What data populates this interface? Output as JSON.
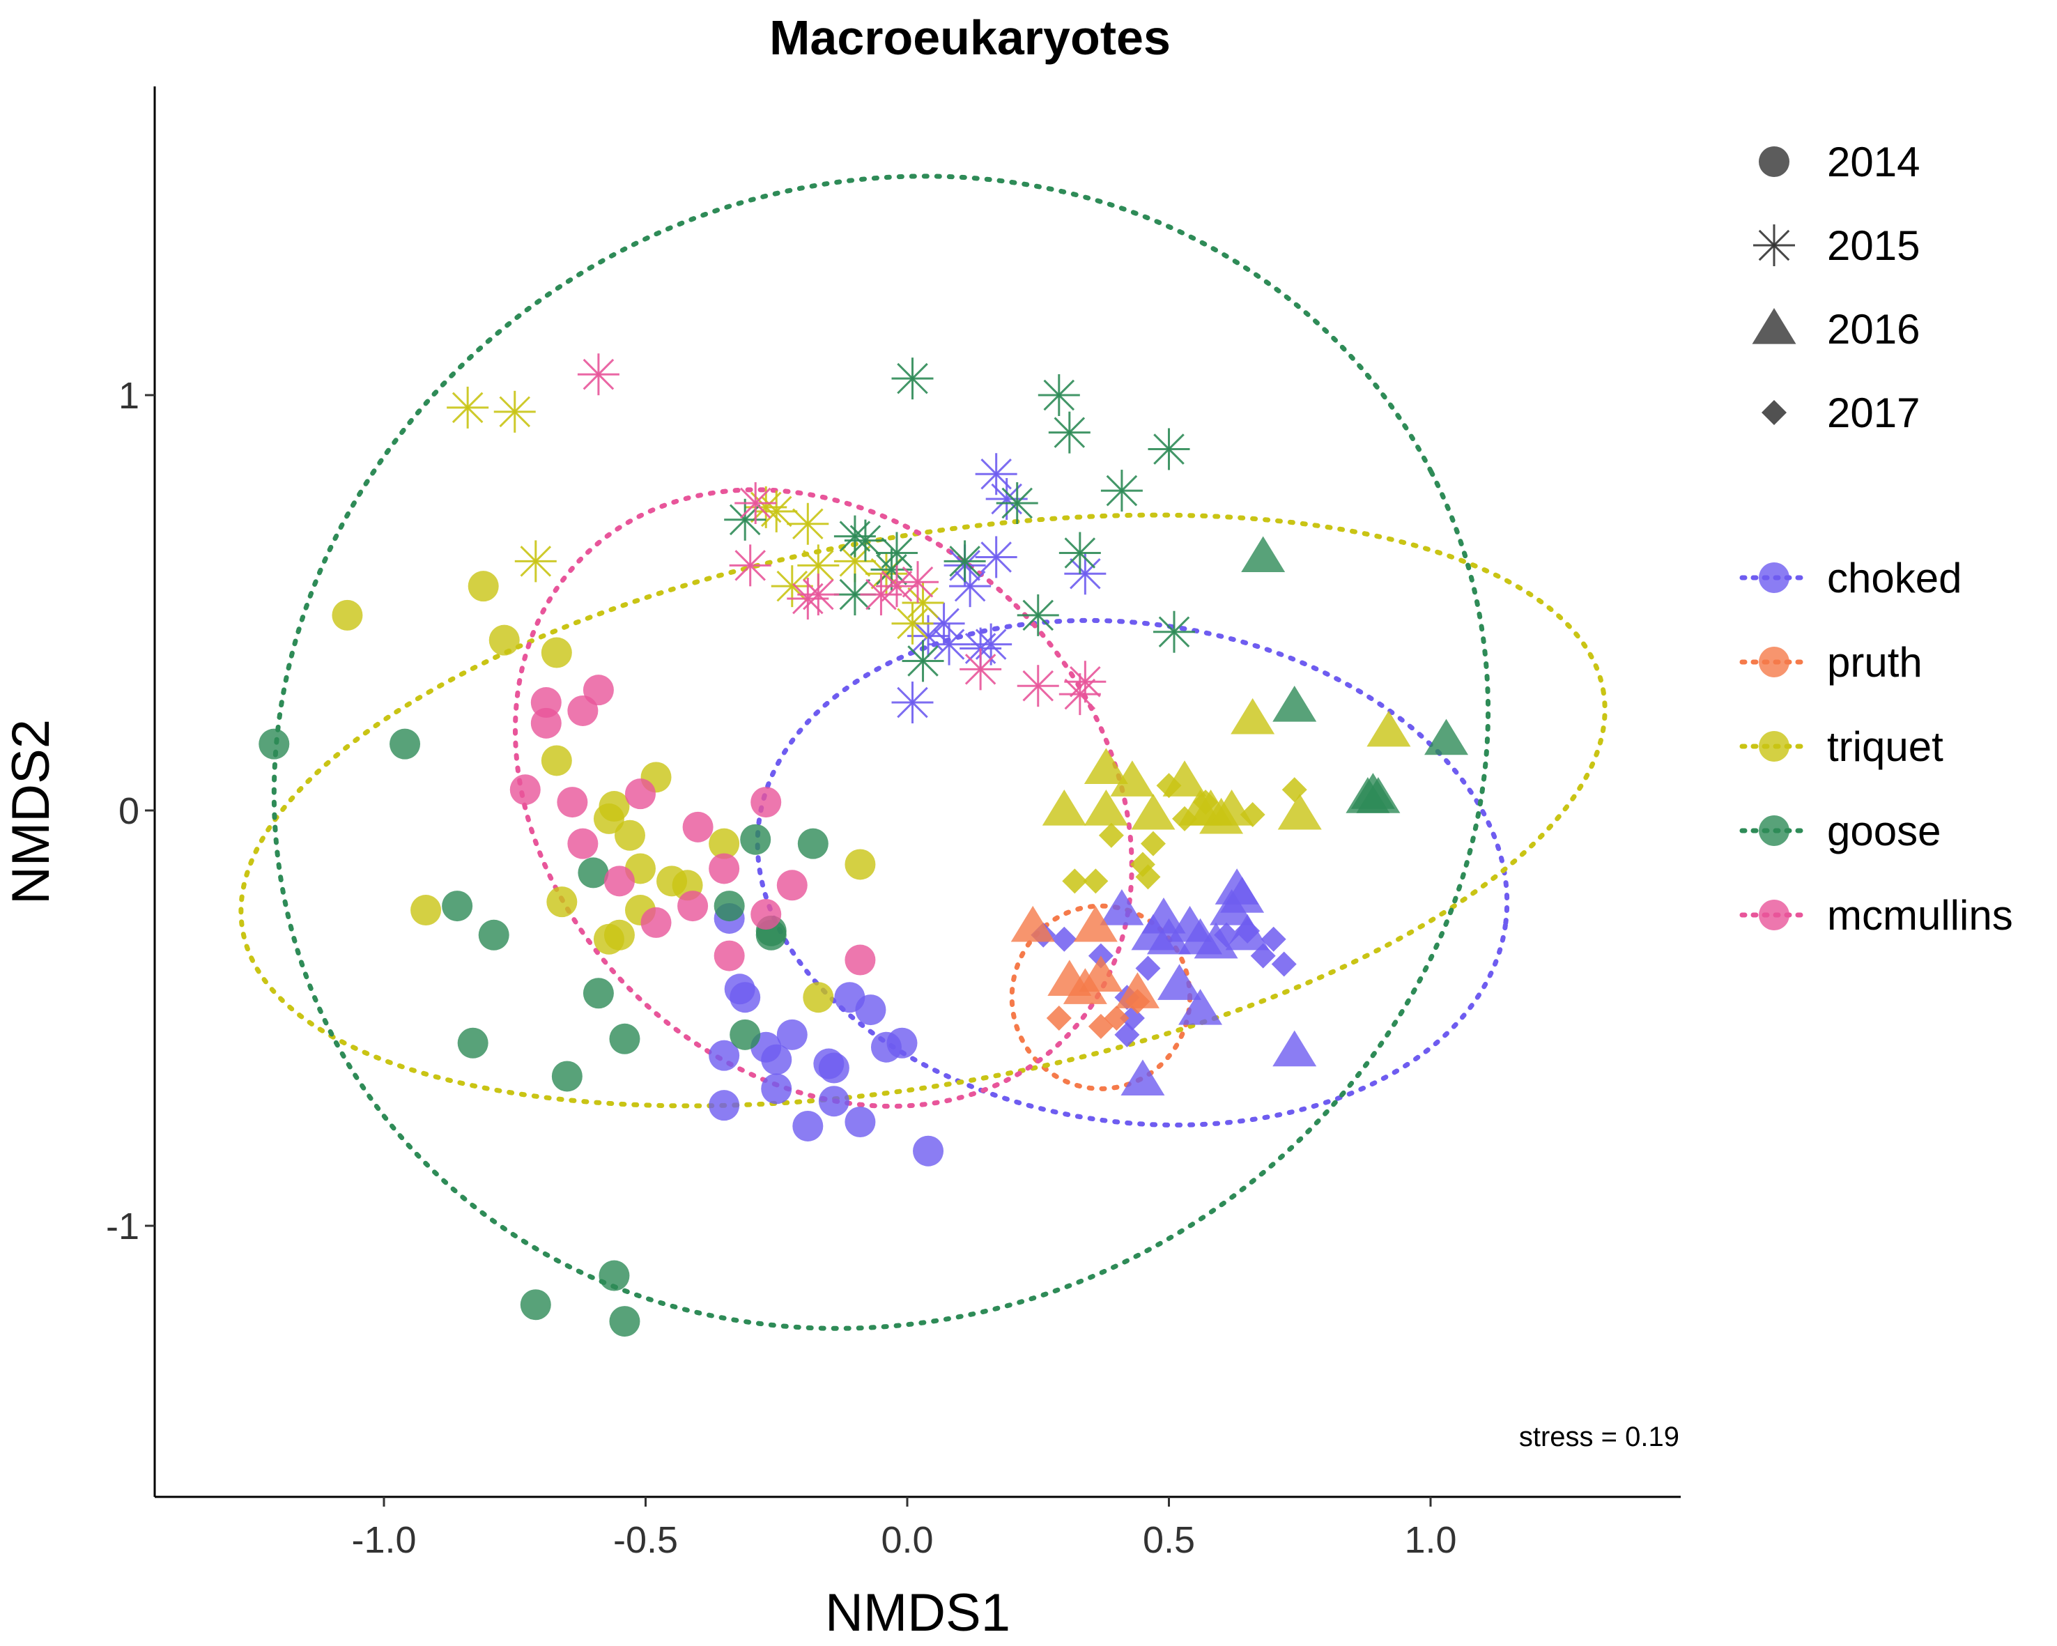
{
  "chart_data": {
    "type": "scatter",
    "title": "Macroeukaryotes",
    "xlabel": "NMDS1",
    "ylabel": "NMDS2",
    "xlim": [
      -1.46,
      1.46
    ],
    "ylim": [
      -1.65,
      1.74
    ],
    "xticks": [
      -1.0,
      -0.5,
      0.0,
      0.5,
      1.0
    ],
    "xtick_labels": [
      "-1.0",
      "-0.5",
      "0.0",
      "0.5",
      "1.0"
    ],
    "yticks": [
      -1,
      0,
      1
    ],
    "ytick_labels": [
      "-1",
      "0",
      "1"
    ],
    "grid": false,
    "annotation": "stress = 0.19",
    "legend_year": {
      "entries": [
        {
          "label": "2014",
          "shape": "circle"
        },
        {
          "label": "2015",
          "shape": "asterisk"
        },
        {
          "label": "2016",
          "shape": "triangle"
        },
        {
          "label": "2017",
          "shape": "diamond"
        }
      ]
    },
    "legend_site": {
      "entries": [
        {
          "label": "choked",
          "color": "#6e5cf0"
        },
        {
          "label": "pruth",
          "color": "#f57a4a"
        },
        {
          "label": "triquet",
          "color": "#c9c414"
        },
        {
          "label": "goose",
          "color": "#2e8b57"
        },
        {
          "label": "mcmullins",
          "color": "#e8559a"
        }
      ]
    },
    "ellipses": [
      {
        "site": "choked",
        "cx": 0.43,
        "cy": -0.15,
        "rx": 0.72,
        "ry": 0.6,
        "rot": 8
      },
      {
        "site": "pruth",
        "cx": 0.37,
        "cy": -0.45,
        "rx": 0.17,
        "ry": 0.22,
        "rot": 0
      },
      {
        "site": "triquet",
        "cx": 0.03,
        "cy": 0.0,
        "rx": 1.32,
        "ry": 0.66,
        "rot": -10
      },
      {
        "site": "goose",
        "cx": -0.05,
        "cy": 0.14,
        "rx": 1.18,
        "ry": 1.36,
        "rot": -27
      },
      {
        "site": "mcmullins",
        "cx": -0.16,
        "cy": 0.03,
        "rx": 0.52,
        "ry": 0.82,
        "rot": -45
      }
    ],
    "series": [
      {
        "name": "choked",
        "year": "2014",
        "points": [
          [
            -0.34,
            -0.26
          ],
          [
            -0.32,
            -0.43
          ],
          [
            -0.31,
            -0.45
          ],
          [
            -0.27,
            -0.57
          ],
          [
            -0.25,
            -0.6
          ],
          [
            -0.25,
            -0.67
          ],
          [
            -0.22,
            -0.54
          ],
          [
            -0.19,
            -0.76
          ],
          [
            -0.15,
            -0.61
          ],
          [
            -0.14,
            -0.7
          ],
          [
            -0.11,
            -0.45
          ],
          [
            -0.09,
            -0.75
          ],
          [
            -0.07,
            -0.48
          ],
          [
            -0.04,
            -0.57
          ],
          [
            -0.01,
            -0.56
          ],
          [
            0.04,
            -0.82
          ],
          [
            -0.35,
            -0.59
          ],
          [
            -0.35,
            -0.71
          ],
          [
            -0.14,
            -0.62
          ]
        ]
      },
      {
        "name": "choked",
        "year": "2015",
        "points": [
          [
            0.01,
            0.26
          ],
          [
            0.04,
            0.42
          ],
          [
            0.07,
            0.45
          ],
          [
            0.08,
            0.4
          ],
          [
            0.11,
            0.59
          ],
          [
            0.12,
            0.54
          ],
          [
            0.14,
            0.39
          ],
          [
            0.16,
            0.4
          ],
          [
            0.17,
            0.61
          ],
          [
            0.19,
            0.75
          ],
          [
            0.17,
            0.81
          ],
          [
            0.34,
            0.57
          ]
        ]
      },
      {
        "name": "choked",
        "year": "2016",
        "points": [
          [
            0.41,
            -0.24
          ],
          [
            0.45,
            -0.65
          ],
          [
            0.49,
            -0.26
          ],
          [
            0.5,
            -0.31
          ],
          [
            0.52,
            -0.42
          ],
          [
            0.54,
            -0.28
          ],
          [
            0.56,
            -0.31
          ],
          [
            0.59,
            -0.32
          ],
          [
            0.62,
            -0.24
          ],
          [
            0.63,
            -0.19
          ],
          [
            0.64,
            -0.21
          ],
          [
            0.65,
            -0.3
          ],
          [
            0.56,
            -0.48
          ],
          [
            0.74,
            -0.58
          ],
          [
            0.47,
            -0.3
          ]
        ]
      },
      {
        "name": "choked",
        "year": "2017",
        "points": [
          [
            0.26,
            -0.3
          ],
          [
            0.3,
            -0.31
          ],
          [
            0.37,
            -0.35
          ],
          [
            0.42,
            -0.45
          ],
          [
            0.43,
            -0.5
          ],
          [
            0.46,
            -0.38
          ],
          [
            0.61,
            -0.3
          ],
          [
            0.65,
            -0.29
          ],
          [
            0.68,
            -0.35
          ],
          [
            0.7,
            -0.31
          ],
          [
            0.72,
            -0.37
          ],
          [
            0.42,
            -0.54
          ]
        ]
      },
      {
        "name": "pruth",
        "year": "2016",
        "points": [
          [
            0.24,
            -0.28
          ],
          [
            0.31,
            -0.41
          ],
          [
            0.34,
            -0.43
          ],
          [
            0.36,
            -0.28
          ],
          [
            0.37,
            -0.4
          ],
          [
            0.44,
            -0.44
          ]
        ]
      },
      {
        "name": "pruth",
        "year": "2017",
        "points": [
          [
            0.29,
            -0.5
          ],
          [
            0.37,
            -0.52
          ],
          [
            0.4,
            -0.5
          ],
          [
            0.44,
            -0.46
          ]
        ]
      },
      {
        "name": "triquet",
        "year": "2014",
        "points": [
          [
            -1.07,
            0.47
          ],
          [
            -0.81,
            0.54
          ],
          [
            -0.77,
            0.41
          ],
          [
            -0.67,
            0.38
          ],
          [
            -0.67,
            0.12
          ],
          [
            -0.66,
            -0.22
          ],
          [
            -0.57,
            -0.02
          ],
          [
            -0.56,
            0.01
          ],
          [
            -0.55,
            -0.3
          ],
          [
            -0.57,
            -0.31
          ],
          [
            -0.53,
            -0.06
          ],
          [
            -0.51,
            -0.14
          ],
          [
            -0.51,
            -0.24
          ],
          [
            -0.48,
            0.08
          ],
          [
            -0.45,
            -0.17
          ],
          [
            -0.42,
            -0.18
          ],
          [
            -0.35,
            -0.08
          ],
          [
            -0.17,
            -0.45
          ],
          [
            -0.09,
            -0.13
          ],
          [
            -0.92,
            -0.24
          ]
        ]
      },
      {
        "name": "triquet",
        "year": "2015",
        "points": [
          [
            -0.84,
            0.97
          ],
          [
            -0.75,
            0.96
          ],
          [
            -0.71,
            0.6
          ],
          [
            -0.27,
            0.73
          ],
          [
            -0.25,
            0.72
          ],
          [
            -0.22,
            0.54
          ],
          [
            -0.19,
            0.69
          ],
          [
            -0.17,
            0.59
          ],
          [
            -0.1,
            0.6
          ],
          [
            -0.04,
            0.57
          ],
          [
            0.01,
            0.45
          ],
          [
            0.03,
            0.5
          ]
        ]
      },
      {
        "name": "triquet",
        "year": "2016",
        "points": [
          [
            0.3,
            0.0
          ],
          [
            0.38,
            0.0
          ],
          [
            0.38,
            0.1
          ],
          [
            0.43,
            0.07
          ],
          [
            0.47,
            -0.01
          ],
          [
            0.53,
            0.07
          ],
          [
            0.56,
            0.0
          ],
          [
            0.58,
            0.0
          ],
          [
            0.6,
            -0.02
          ],
          [
            0.62,
            0.0
          ],
          [
            0.66,
            0.22
          ],
          [
            0.75,
            -0.01
          ],
          [
            0.92,
            0.19
          ]
        ]
      },
      {
        "name": "triquet",
        "year": "2017",
        "points": [
          [
            0.32,
            -0.17
          ],
          [
            0.36,
            -0.17
          ],
          [
            0.39,
            -0.06
          ],
          [
            0.45,
            -0.13
          ],
          [
            0.46,
            -0.16
          ],
          [
            0.47,
            -0.08
          ],
          [
            0.5,
            0.06
          ],
          [
            0.53,
            -0.02
          ],
          [
            0.57,
            0.02
          ],
          [
            0.66,
            -0.01
          ],
          [
            0.74,
            0.05
          ]
        ]
      },
      {
        "name": "goose",
        "year": "2014",
        "points": [
          [
            -1.21,
            0.16
          ],
          [
            -0.96,
            0.16
          ],
          [
            -0.86,
            -0.23
          ],
          [
            -0.79,
            -0.3
          ],
          [
            -0.83,
            -0.56
          ],
          [
            -0.65,
            -0.64
          ],
          [
            -0.59,
            -0.44
          ],
          [
            -0.6,
            -0.15
          ],
          [
            -0.54,
            -0.55
          ],
          [
            -0.34,
            -0.23
          ],
          [
            -0.31,
            -0.54
          ],
          [
            -0.29,
            -0.07
          ],
          [
            -0.26,
            -0.29
          ],
          [
            -0.26,
            -0.3
          ],
          [
            -0.18,
            -0.08
          ],
          [
            -0.71,
            -1.19
          ],
          [
            -0.56,
            -1.12
          ],
          [
            -0.54,
            -1.23
          ]
        ]
      },
      {
        "name": "goose",
        "year": "2015",
        "points": [
          [
            0.01,
            1.04
          ],
          [
            0.29,
            1.0
          ],
          [
            0.31,
            0.91
          ],
          [
            0.41,
            0.77
          ],
          [
            0.5,
            0.87
          ],
          [
            0.21,
            0.74
          ],
          [
            0.11,
            0.6
          ],
          [
            0.33,
            0.62
          ],
          [
            0.25,
            0.47
          ],
          [
            0.51,
            0.43
          ],
          [
            -0.1,
            0.66
          ],
          [
            -0.08,
            0.65
          ],
          [
            -0.02,
            0.62
          ],
          [
            0.03,
            0.36
          ],
          [
            -0.31,
            0.7
          ],
          [
            -0.1,
            0.52
          ],
          [
            -0.03,
            0.58
          ]
        ]
      },
      {
        "name": "goose",
        "year": "2016",
        "points": [
          [
            0.68,
            0.61
          ],
          [
            0.74,
            0.25
          ],
          [
            0.88,
            0.03
          ],
          [
            0.89,
            0.04
          ],
          [
            0.9,
            0.03
          ],
          [
            1.03,
            0.17
          ]
        ]
      },
      {
        "name": "mcmullins",
        "year": "2014",
        "points": [
          [
            -0.73,
            0.05
          ],
          [
            -0.69,
            0.21
          ],
          [
            -0.69,
            0.26
          ],
          [
            -0.64,
            0.02
          ],
          [
            -0.62,
            0.24
          ],
          [
            -0.59,
            0.29
          ],
          [
            -0.62,
            -0.08
          ],
          [
            -0.55,
            -0.17
          ],
          [
            -0.51,
            0.04
          ],
          [
            -0.48,
            -0.27
          ],
          [
            -0.41,
            -0.23
          ],
          [
            -0.4,
            -0.04
          ],
          [
            -0.35,
            -0.14
          ],
          [
            -0.34,
            -0.35
          ],
          [
            -0.27,
            -0.25
          ],
          [
            -0.27,
            0.02
          ],
          [
            -0.22,
            -0.18
          ],
          [
            -0.09,
            -0.36
          ]
        ]
      },
      {
        "name": "mcmullins",
        "year": "2015",
        "points": [
          [
            -0.59,
            1.05
          ],
          [
            -0.29,
            0.74
          ],
          [
            -0.3,
            0.59
          ],
          [
            -0.19,
            0.51
          ],
          [
            -0.17,
            0.52
          ],
          [
            -0.02,
            0.54
          ],
          [
            0.02,
            0.55
          ],
          [
            0.14,
            0.34
          ],
          [
            0.25,
            0.3
          ],
          [
            0.33,
            0.28
          ],
          [
            0.34,
            0.31
          ],
          [
            -0.05,
            0.52
          ]
        ]
      }
    ]
  }
}
